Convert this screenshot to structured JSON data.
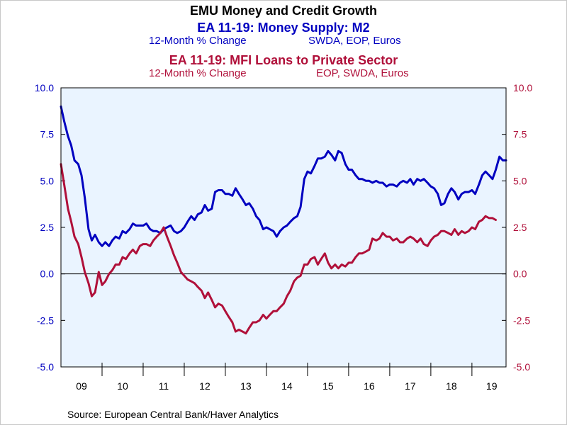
{
  "chart_data": {
    "type": "line",
    "title": "EMU Money and Credit Growth",
    "source": "Source:  European Central Bank/Haver Analytics",
    "ylim": [
      -5.0,
      10.0
    ],
    "yticks": [
      "10.0",
      "7.5",
      "5.0",
      "2.5",
      "0.0",
      "-2.5",
      "-5.0"
    ],
    "ytick_values": [
      10.0,
      7.5,
      5.0,
      2.5,
      0.0,
      -2.5,
      -5.0
    ],
    "xlim": [
      2009.0,
      2019.83
    ],
    "xticks": [
      "09",
      "10",
      "11",
      "12",
      "13",
      "14",
      "15",
      "16",
      "17",
      "18",
      "19"
    ],
    "grid": false,
    "colors": {
      "m2": "#0000c0",
      "loans": "#b0103a",
      "plot_bg": "#eaf4ff",
      "zero_line": "#000000"
    },
    "series": [
      {
        "name": "EA 11-19: Money Supply: M2",
        "subtitle_left": "12-Month % Change",
        "subtitle_right": "SWDA, EOP, Euros",
        "axis": "left",
        "color": "#0000c0",
        "points": [
          [
            2009.0,
            9.0
          ],
          [
            2009.08,
            8.2
          ],
          [
            2009.17,
            7.4
          ],
          [
            2009.25,
            6.9
          ],
          [
            2009.33,
            6.1
          ],
          [
            2009.42,
            5.9
          ],
          [
            2009.5,
            5.3
          ],
          [
            2009.58,
            4.1
          ],
          [
            2009.67,
            2.4
          ],
          [
            2009.75,
            1.8
          ],
          [
            2009.83,
            2.1
          ],
          [
            2009.92,
            1.7
          ],
          [
            2010.0,
            1.5
          ],
          [
            2010.08,
            1.7
          ],
          [
            2010.17,
            1.5
          ],
          [
            2010.25,
            1.8
          ],
          [
            2010.33,
            2.0
          ],
          [
            2010.42,
            1.9
          ],
          [
            2010.5,
            2.3
          ],
          [
            2010.58,
            2.2
          ],
          [
            2010.67,
            2.4
          ],
          [
            2010.75,
            2.7
          ],
          [
            2010.83,
            2.6
          ],
          [
            2010.92,
            2.6
          ],
          [
            2011.0,
            2.6
          ],
          [
            2011.08,
            2.7
          ],
          [
            2011.17,
            2.4
          ],
          [
            2011.25,
            2.3
          ],
          [
            2011.33,
            2.3
          ],
          [
            2011.42,
            2.2
          ],
          [
            2011.5,
            2.4
          ],
          [
            2011.58,
            2.5
          ],
          [
            2011.67,
            2.6
          ],
          [
            2011.75,
            2.3
          ],
          [
            2011.83,
            2.2
          ],
          [
            2011.92,
            2.3
          ],
          [
            2012.0,
            2.5
          ],
          [
            2012.08,
            2.8
          ],
          [
            2012.17,
            3.1
          ],
          [
            2012.25,
            2.9
          ],
          [
            2012.33,
            3.2
          ],
          [
            2012.42,
            3.3
          ],
          [
            2012.5,
            3.7
          ],
          [
            2012.58,
            3.4
          ],
          [
            2012.67,
            3.5
          ],
          [
            2012.75,
            4.4
          ],
          [
            2012.83,
            4.5
          ],
          [
            2012.92,
            4.5
          ],
          [
            2013.0,
            4.3
          ],
          [
            2013.08,
            4.3
          ],
          [
            2013.17,
            4.2
          ],
          [
            2013.25,
            4.6
          ],
          [
            2013.33,
            4.3
          ],
          [
            2013.42,
            4.0
          ],
          [
            2013.5,
            3.7
          ],
          [
            2013.58,
            3.8
          ],
          [
            2013.67,
            3.5
          ],
          [
            2013.75,
            3.1
          ],
          [
            2013.83,
            2.9
          ],
          [
            2013.92,
            2.4
          ],
          [
            2014.0,
            2.5
          ],
          [
            2014.08,
            2.4
          ],
          [
            2014.17,
            2.3
          ],
          [
            2014.25,
            2.0
          ],
          [
            2014.33,
            2.3
          ],
          [
            2014.42,
            2.5
          ],
          [
            2014.5,
            2.6
          ],
          [
            2014.58,
            2.8
          ],
          [
            2014.67,
            3.0
          ],
          [
            2014.75,
            3.1
          ],
          [
            2014.83,
            3.6
          ],
          [
            2014.92,
            5.1
          ],
          [
            2015.0,
            5.5
          ],
          [
            2015.08,
            5.4
          ],
          [
            2015.17,
            5.8
          ],
          [
            2015.25,
            6.2
          ],
          [
            2015.33,
            6.2
          ],
          [
            2015.42,
            6.3
          ],
          [
            2015.5,
            6.6
          ],
          [
            2015.58,
            6.4
          ],
          [
            2015.67,
            6.1
          ],
          [
            2015.75,
            6.6
          ],
          [
            2015.83,
            6.5
          ],
          [
            2015.92,
            5.9
          ],
          [
            2016.0,
            5.6
          ],
          [
            2016.08,
            5.6
          ],
          [
            2016.17,
            5.3
          ],
          [
            2016.25,
            5.1
          ],
          [
            2016.33,
            5.1
          ],
          [
            2016.42,
            5.0
          ],
          [
            2016.5,
            5.0
          ],
          [
            2016.58,
            4.9
          ],
          [
            2016.67,
            5.0
          ],
          [
            2016.75,
            4.9
          ],
          [
            2016.83,
            4.9
          ],
          [
            2016.92,
            4.7
          ],
          [
            2017.0,
            4.8
          ],
          [
            2017.08,
            4.8
          ],
          [
            2017.17,
            4.7
          ],
          [
            2017.25,
            4.9
          ],
          [
            2017.33,
            5.0
          ],
          [
            2017.42,
            4.9
          ],
          [
            2017.5,
            5.1
          ],
          [
            2017.58,
            4.8
          ],
          [
            2017.67,
            5.1
          ],
          [
            2017.75,
            5.0
          ],
          [
            2017.83,
            5.1
          ],
          [
            2017.92,
            4.9
          ],
          [
            2018.0,
            4.7
          ],
          [
            2018.08,
            4.6
          ],
          [
            2018.17,
            4.3
          ],
          [
            2018.25,
            3.7
          ],
          [
            2018.33,
            3.8
          ],
          [
            2018.42,
            4.3
          ],
          [
            2018.5,
            4.6
          ],
          [
            2018.58,
            4.4
          ],
          [
            2018.67,
            4.0
          ],
          [
            2018.75,
            4.3
          ],
          [
            2018.83,
            4.4
          ],
          [
            2018.92,
            4.4
          ],
          [
            2019.0,
            4.5
          ],
          [
            2019.08,
            4.3
          ],
          [
            2019.17,
            4.8
          ],
          [
            2019.25,
            5.3
          ],
          [
            2019.33,
            5.5
          ],
          [
            2019.42,
            5.3
          ],
          [
            2019.5,
            5.1
          ],
          [
            2019.58,
            5.6
          ],
          [
            2019.67,
            6.3
          ],
          [
            2019.75,
            6.1
          ],
          [
            2019.83,
            6.1
          ]
        ]
      },
      {
        "name": "EA 11-19: MFI Loans to Private Sector",
        "subtitle_left": "12-Month % Change",
        "subtitle_right": "EOP, SWDA, Euros",
        "axis": "right",
        "color": "#b0103a",
        "points": [
          [
            2009.0,
            5.9
          ],
          [
            2009.08,
            4.8
          ],
          [
            2009.17,
            3.5
          ],
          [
            2009.25,
            2.8
          ],
          [
            2009.33,
            2.0
          ],
          [
            2009.42,
            1.6
          ],
          [
            2009.5,
            0.9
          ],
          [
            2009.58,
            0.1
          ],
          [
            2009.67,
            -0.5
          ],
          [
            2009.75,
            -1.2
          ],
          [
            2009.83,
            -1.0
          ],
          [
            2009.92,
            0.1
          ],
          [
            2010.0,
            -0.6
          ],
          [
            2010.08,
            -0.4
          ],
          [
            2010.17,
            0.0
          ],
          [
            2010.25,
            0.2
          ],
          [
            2010.33,
            0.5
          ],
          [
            2010.42,
            0.5
          ],
          [
            2010.5,
            0.9
          ],
          [
            2010.58,
            0.8
          ],
          [
            2010.67,
            1.1
          ],
          [
            2010.75,
            1.3
          ],
          [
            2010.83,
            1.1
          ],
          [
            2010.92,
            1.5
          ],
          [
            2011.0,
            1.6
          ],
          [
            2011.08,
            1.6
          ],
          [
            2011.17,
            1.5
          ],
          [
            2011.25,
            1.8
          ],
          [
            2011.33,
            2.0
          ],
          [
            2011.42,
            2.2
          ],
          [
            2011.5,
            2.5
          ],
          [
            2011.58,
            2.0
          ],
          [
            2011.67,
            1.5
          ],
          [
            2011.75,
            1.0
          ],
          [
            2011.83,
            0.6
          ],
          [
            2011.92,
            0.1
          ],
          [
            2012.0,
            -0.1
          ],
          [
            2012.08,
            -0.3
          ],
          [
            2012.17,
            -0.4
          ],
          [
            2012.25,
            -0.5
          ],
          [
            2012.33,
            -0.7
          ],
          [
            2012.42,
            -0.9
          ],
          [
            2012.5,
            -1.3
          ],
          [
            2012.58,
            -1.0
          ],
          [
            2012.67,
            -1.4
          ],
          [
            2012.75,
            -1.8
          ],
          [
            2012.83,
            -1.6
          ],
          [
            2012.92,
            -1.7
          ],
          [
            2013.0,
            -2.0
          ],
          [
            2013.08,
            -2.3
          ],
          [
            2013.17,
            -2.6
          ],
          [
            2013.25,
            -3.1
          ],
          [
            2013.33,
            -3.0
          ],
          [
            2013.42,
            -3.1
          ],
          [
            2013.5,
            -3.2
          ],
          [
            2013.58,
            -2.9
          ],
          [
            2013.67,
            -2.6
          ],
          [
            2013.75,
            -2.6
          ],
          [
            2013.83,
            -2.5
          ],
          [
            2013.92,
            -2.2
          ],
          [
            2014.0,
            -2.4
          ],
          [
            2014.08,
            -2.2
          ],
          [
            2014.17,
            -2.0
          ],
          [
            2014.25,
            -2.0
          ],
          [
            2014.33,
            -1.8
          ],
          [
            2014.42,
            -1.6
          ],
          [
            2014.5,
            -1.2
          ],
          [
            2014.58,
            -0.9
          ],
          [
            2014.67,
            -0.4
          ],
          [
            2014.75,
            -0.2
          ],
          [
            2014.83,
            -0.1
          ],
          [
            2014.92,
            0.5
          ],
          [
            2015.0,
            0.5
          ],
          [
            2015.08,
            0.8
          ],
          [
            2015.17,
            0.9
          ],
          [
            2015.25,
            0.5
          ],
          [
            2015.33,
            0.8
          ],
          [
            2015.42,
            1.1
          ],
          [
            2015.5,
            0.6
          ],
          [
            2015.58,
            0.3
          ],
          [
            2015.67,
            0.5
          ],
          [
            2015.75,
            0.3
          ],
          [
            2015.83,
            0.5
          ],
          [
            2015.92,
            0.4
          ],
          [
            2016.0,
            0.6
          ],
          [
            2016.08,
            0.6
          ],
          [
            2016.17,
            0.9
          ],
          [
            2016.25,
            1.1
          ],
          [
            2016.33,
            1.1
          ],
          [
            2016.42,
            1.2
          ],
          [
            2016.5,
            1.3
          ],
          [
            2016.58,
            1.9
          ],
          [
            2016.67,
            1.8
          ],
          [
            2016.75,
            1.9
          ],
          [
            2016.83,
            2.2
          ],
          [
            2016.92,
            2.0
          ],
          [
            2017.0,
            2.0
          ],
          [
            2017.08,
            1.8
          ],
          [
            2017.17,
            1.9
          ],
          [
            2017.25,
            1.7
          ],
          [
            2017.33,
            1.7
          ],
          [
            2017.42,
            1.9
          ],
          [
            2017.5,
            2.0
          ],
          [
            2017.58,
            1.9
          ],
          [
            2017.67,
            1.7
          ],
          [
            2017.75,
            1.9
          ],
          [
            2017.83,
            1.6
          ],
          [
            2017.92,
            1.5
          ],
          [
            2018.0,
            1.8
          ],
          [
            2018.08,
            2.0
          ],
          [
            2018.17,
            2.1
          ],
          [
            2018.25,
            2.3
          ],
          [
            2018.33,
            2.3
          ],
          [
            2018.42,
            2.2
          ],
          [
            2018.5,
            2.1
          ],
          [
            2018.58,
            2.4
          ],
          [
            2018.67,
            2.1
          ],
          [
            2018.75,
            2.3
          ],
          [
            2018.83,
            2.2
          ],
          [
            2018.92,
            2.3
          ],
          [
            2019.0,
            2.5
          ],
          [
            2019.08,
            2.4
          ],
          [
            2019.17,
            2.8
          ],
          [
            2019.25,
            2.9
          ],
          [
            2019.33,
            3.1
          ],
          [
            2019.42,
            3.0
          ],
          [
            2019.5,
            3.0
          ],
          [
            2019.58,
            2.9
          ]
        ]
      }
    ]
  }
}
